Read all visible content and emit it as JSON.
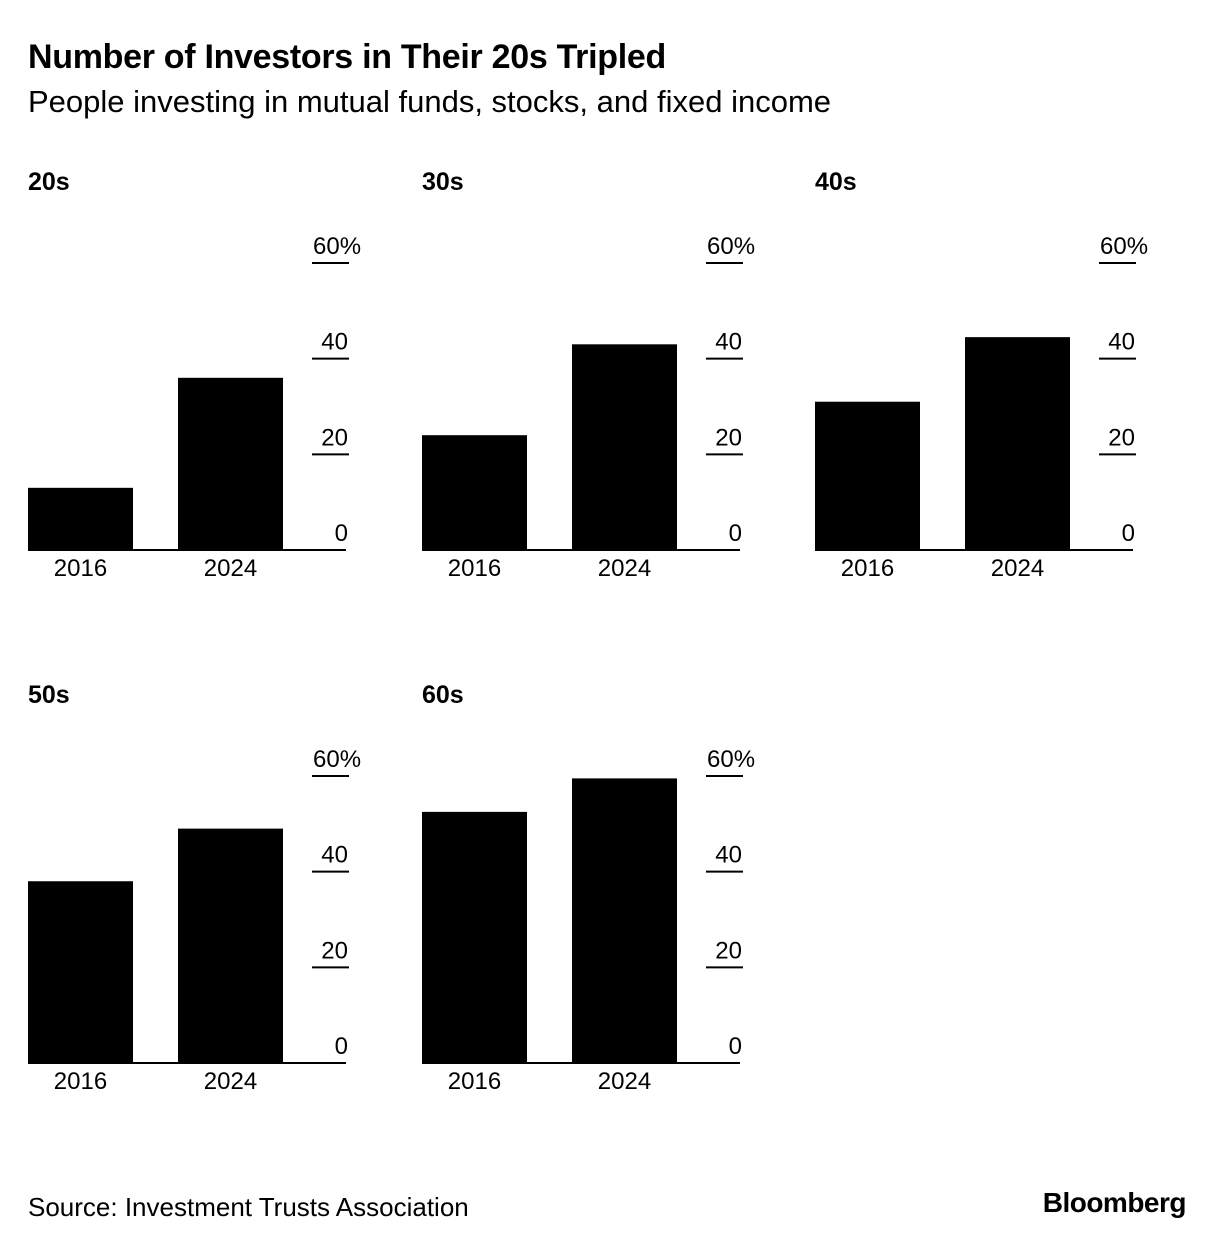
{
  "title": "Number of Investors in Their 20s Tripled",
  "subtitle": "People investing in mutual funds, stocks, and fixed income",
  "source": "Source: Investment Trusts Association",
  "brand": "Bloomberg",
  "colors": {
    "bar": "#000000",
    "text": "#000000",
    "background": "#ffffff"
  },
  "chart_data": [
    {
      "type": "bar",
      "title": "20s",
      "categories": [
        "2016",
        "2024"
      ],
      "values": [
        13,
        36
      ],
      "ylim": [
        0,
        60
      ],
      "yticks": [
        0,
        20,
        40,
        60
      ],
      "ytick_labels": [
        "0",
        "20",
        "40",
        "60%"
      ],
      "y_axis_side": "right"
    },
    {
      "type": "bar",
      "title": "30s",
      "categories": [
        "2016",
        "2024"
      ],
      "values": [
        24,
        43
      ],
      "ylim": [
        0,
        60
      ],
      "yticks": [
        0,
        20,
        40,
        60
      ],
      "ytick_labels": [
        "0",
        "20",
        "40",
        "60%"
      ],
      "y_axis_side": "right"
    },
    {
      "type": "bar",
      "title": "40s",
      "categories": [
        "2016",
        "2024"
      ],
      "values": [
        31,
        44.5
      ],
      "ylim": [
        0,
        60
      ],
      "yticks": [
        0,
        20,
        40,
        60
      ],
      "ytick_labels": [
        "0",
        "20",
        "40",
        "60%"
      ],
      "y_axis_side": "right"
    },
    {
      "type": "bar",
      "title": "50s",
      "categories": [
        "2016",
        "2024"
      ],
      "values": [
        38,
        49
      ],
      "ylim": [
        0,
        60
      ],
      "yticks": [
        0,
        20,
        40,
        60
      ],
      "ytick_labels": [
        "0",
        "20",
        "40",
        "60%"
      ],
      "y_axis_side": "right"
    },
    {
      "type": "bar",
      "title": "60s",
      "categories": [
        "2016",
        "2024"
      ],
      "values": [
        52.5,
        59.5
      ],
      "ylim": [
        0,
        60
      ],
      "yticks": [
        0,
        20,
        40,
        60
      ],
      "ytick_labels": [
        "0",
        "20",
        "40",
        "60%"
      ],
      "y_axis_side": "right"
    }
  ]
}
